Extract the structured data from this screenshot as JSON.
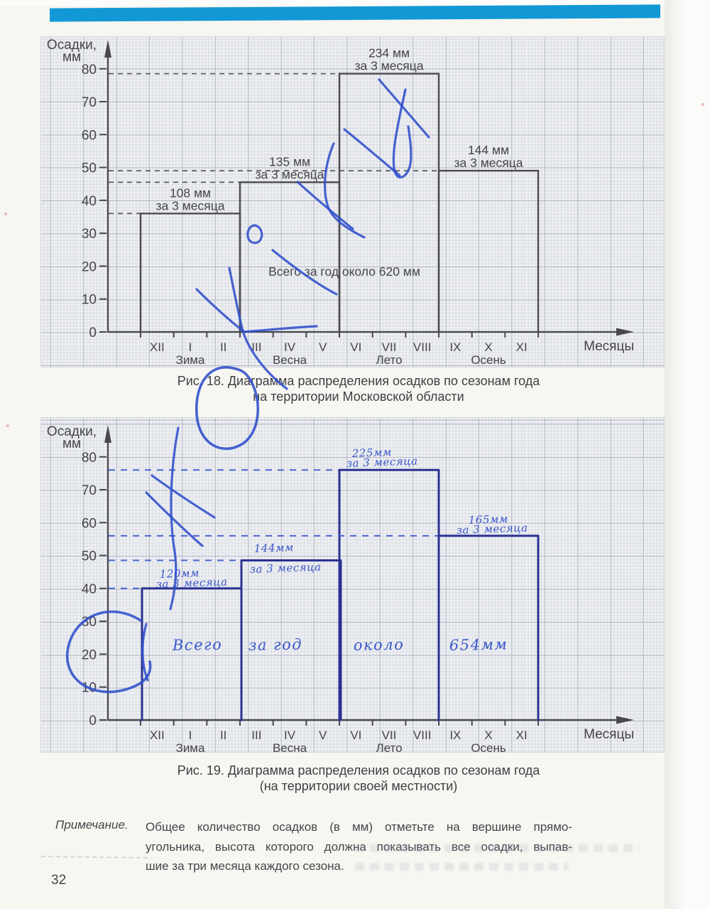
{
  "page": {
    "number": "32",
    "colors": {
      "top_bar": "#1398d6",
      "printed_ink": "#47474d",
      "hand_bar_ink": "#2b3191",
      "hand_text_ink": "#3a57cb",
      "pen_scribble": "#2f4ecb",
      "graph_paper": "#edeff2"
    }
  },
  "note": {
    "label": "Примечание.",
    "lines": [
      "Общее количество осадков (в мм) отметьте на вершине прямо-",
      "угольника, высота которого должна показывать все осадки, выпав-",
      "шие за три месяца каждого сезона."
    ]
  },
  "chart_data": [
    {
      "type": "bar",
      "style": "printed",
      "ink": "#47474d",
      "ylabel_lines": [
        "Осадки,",
        "мм"
      ],
      "xlabel": "Месяцы",
      "ylim": [
        0,
        80
      ],
      "y_ticks": [
        0,
        10,
        20,
        30,
        40,
        50,
        60,
        70,
        80
      ],
      "months": [
        "XII",
        "I",
        "II",
        "III",
        "IV",
        "V",
        "VI",
        "VII",
        "VIII",
        "IX",
        "X",
        "XI"
      ],
      "seasons": [
        "Зима",
        "Весна",
        "Лето",
        "Осень"
      ],
      "season_totals_mm": [
        108,
        135,
        234,
        144
      ],
      "bar_top_mm": [
        36,
        45.5,
        78.5,
        49
      ],
      "value_labels": [
        "108 мм",
        "135 мм",
        "234 мм",
        "144 мм"
      ],
      "annotation_suffix": "за 3 месяца",
      "total_label": "Всего за год около 620 мм",
      "caption": [
        "Рис. 18. Диаграмма распределения осадков по сезонам года",
        "на территории Московской области"
      ]
    },
    {
      "type": "bar",
      "style": "handwritten",
      "ink": "#2b3191",
      "ylabel_lines": [
        "Осадки,",
        "мм"
      ],
      "xlabel": "Месяцы",
      "ylim": [
        0,
        80
      ],
      "y_ticks": [
        0,
        10,
        20,
        30,
        40,
        50,
        60,
        70,
        80
      ],
      "months": [
        "XII",
        "I",
        "II",
        "III",
        "IV",
        "V",
        "VI",
        "VII",
        "VIII",
        "IX",
        "X",
        "XI"
      ],
      "seasons": [
        "Зима",
        "Весна",
        "Лето",
        "Осень"
      ],
      "season_totals_mm": [
        120,
        144,
        225,
        165
      ],
      "bar_top_mm": [
        40,
        48.5,
        76,
        56
      ],
      "value_labels": [
        "120мм",
        "144мм",
        "225мм",
        "165мм"
      ],
      "annotation_suffix": "за 3 месяца",
      "total_words": [
        "Всего",
        "за год",
        "около",
        "654мм"
      ],
      "caption": [
        "Рис. 19. Диаграмма распределения осадков по сезонам года",
        "(на территории своей местности)"
      ]
    }
  ]
}
